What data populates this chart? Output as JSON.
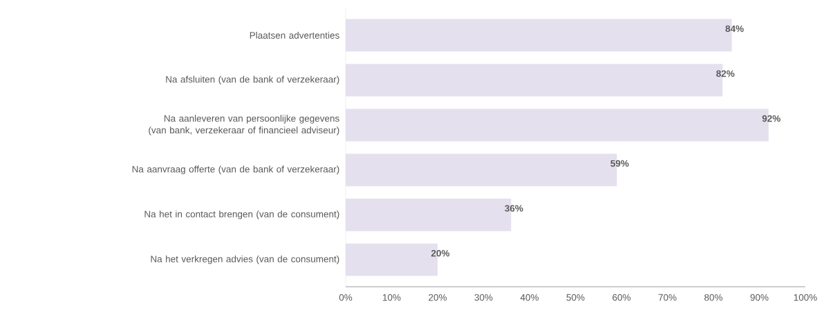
{
  "chart_data": {
    "type": "bar",
    "orientation": "horizontal",
    "categories": [
      "Plaatsen advertenties",
      "Na afsluiten (van de bank of verzekeraar)",
      "Na aanleveren van persoonlijke gegevens (van bank, verzekeraar of financieel adviseur)",
      "Na aanvraag offerte (van de bank of verzekeraar)",
      "Na het in contact brengen (van de consument)",
      "Na het verkregen advies (van de consument)"
    ],
    "values": [
      84,
      82,
      92,
      59,
      36,
      20
    ],
    "value_labels": [
      "84%",
      "82%",
      "92%",
      "59%",
      "36%",
      "20%"
    ],
    "color": "#e5e0ee",
    "xlim": [
      0,
      100
    ],
    "xticks": [
      {
        "value": 0,
        "label": "0%"
      },
      {
        "value": 10,
        "label": "10%"
      },
      {
        "value": 20,
        "label": "20%"
      },
      {
        "value": 30,
        "label": "30%"
      },
      {
        "value": 40,
        "label": "40%"
      },
      {
        "value": 50,
        "label": "50%"
      },
      {
        "value": 60,
        "label": "60%"
      },
      {
        "value": 70,
        "label": "70%"
      },
      {
        "value": 80,
        "label": "80%"
      },
      {
        "value": 90,
        "label": "90%"
      },
      {
        "value": 100,
        "label": "100%"
      }
    ]
  }
}
